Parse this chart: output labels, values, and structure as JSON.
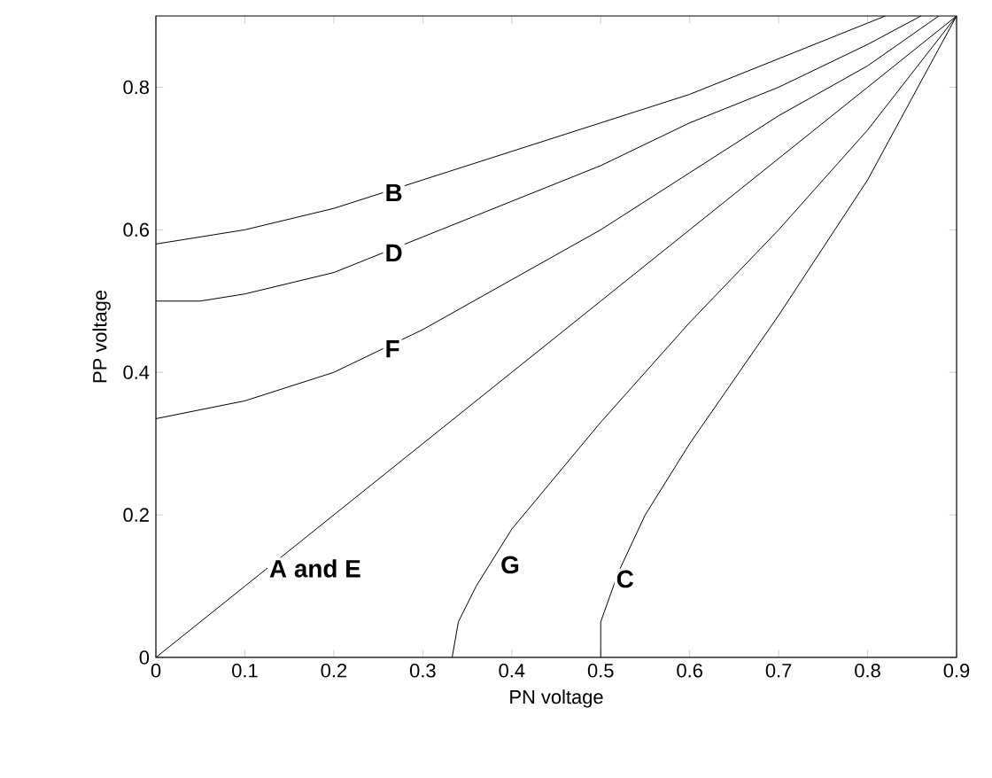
{
  "chart_data": {
    "type": "line",
    "xlabel": "PN voltage",
    "ylabel": "PP voltage",
    "xlim": [
      0,
      0.9
    ],
    "ylim": [
      0,
      0.9
    ],
    "xticks": [
      0,
      0.1,
      0.2,
      0.3,
      0.4,
      0.5,
      0.6,
      0.7,
      0.8,
      0.9
    ],
    "yticks": [
      0,
      0.2,
      0.4,
      0.6,
      0.8
    ],
    "grid": false,
    "legend": false,
    "marker": "none",
    "line_style": "solid",
    "series": [
      {
        "color": "#000000",
        "x": [
          0,
          0.1,
          0.2,
          0.3,
          0.4,
          0.5,
          0.6,
          0.7,
          0.8,
          0.82
        ],
        "values": [
          0.58,
          0.6,
          0.63,
          0.67,
          0.71,
          0.75,
          0.79,
          0.84,
          0.89,
          0.9
        ]
      },
      {
        "color": "#000000",
        "x": [
          0,
          0.05,
          0.1,
          0.2,
          0.3,
          0.4,
          0.5,
          0.6,
          0.7,
          0.8,
          0.86
        ],
        "values": [
          0.5,
          0.5,
          0.51,
          0.54,
          0.59,
          0.64,
          0.69,
          0.75,
          0.8,
          0.86,
          0.9
        ]
      },
      {
        "color": "#000000",
        "x": [
          0,
          0.1,
          0.2,
          0.3,
          0.4,
          0.5,
          0.6,
          0.7,
          0.8,
          0.88
        ],
        "values": [
          0.335,
          0.36,
          0.4,
          0.46,
          0.53,
          0.6,
          0.68,
          0.76,
          0.83,
          0.9
        ]
      },
      {
        "color": "#000000",
        "x": [
          0,
          0.1,
          0.2,
          0.3,
          0.4,
          0.5,
          0.6,
          0.7,
          0.8,
          0.9
        ],
        "values": [
          0,
          0.1,
          0.2,
          0.3,
          0.4,
          0.5,
          0.6,
          0.7,
          0.8,
          0.9
        ]
      },
      {
        "color": "#000000",
        "x": [
          0.333,
          0.34,
          0.36,
          0.4,
          0.5,
          0.6,
          0.7,
          0.8,
          0.9
        ],
        "values": [
          0,
          0.05,
          0.1,
          0.18,
          0.33,
          0.47,
          0.6,
          0.74,
          0.9
        ]
      },
      {
        "color": "#000000",
        "x": [
          0.5,
          0.5,
          0.52,
          0.55,
          0.6,
          0.7,
          0.8,
          0.9
        ],
        "values": [
          0,
          0.05,
          0.12,
          0.2,
          0.3,
          0.48,
          0.67,
          0.9
        ]
      }
    ],
    "annotations": [
      {
        "text": "B",
        "x": 0.255,
        "y": 0.652
      },
      {
        "text": "D",
        "x": 0.255,
        "y": 0.5675
      },
      {
        "text": "F",
        "x": 0.255,
        "y": 0.433
      },
      {
        "text": "A and E",
        "x": 0.125,
        "y": 0.125
      },
      {
        "text": "G",
        "x": 0.385,
        "y": 0.13
      },
      {
        "text": "C",
        "x": 0.515,
        "y": 0.11
      }
    ]
  }
}
